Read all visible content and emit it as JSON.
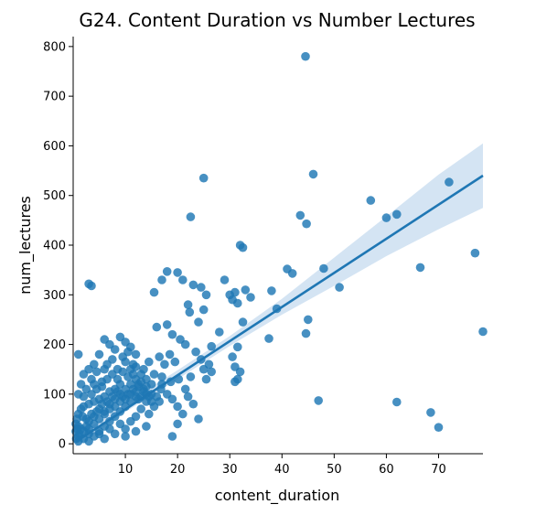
{
  "chart_data": {
    "type": "scatter",
    "title": "G24. Content Duration vs Number Lectures",
    "xlabel": "content_duration",
    "ylabel": "num_lectures",
    "xlim": [
      0,
      78.5
    ],
    "ylim": [
      -20,
      820
    ],
    "xticks": [
      "10",
      "20",
      "30",
      "40",
      "50",
      "60",
      "70"
    ],
    "yticks": [
      "0",
      "100",
      "200",
      "300",
      "400",
      "500",
      "600",
      "700",
      "800"
    ],
    "grid": false,
    "point_color": "#1f77b4",
    "band_color": "#c6dbef",
    "points": [
      [
        44.5,
        780
      ],
      [
        25,
        535
      ],
      [
        46,
        543
      ],
      [
        72,
        527
      ],
      [
        57,
        490
      ],
      [
        62,
        462
      ],
      [
        60,
        455
      ],
      [
        22.5,
        457
      ],
      [
        43.5,
        460
      ],
      [
        44.7,
        443
      ],
      [
        32,
        400
      ],
      [
        32.5,
        395
      ],
      [
        48,
        353
      ],
      [
        41,
        352
      ],
      [
        42,
        343
      ],
      [
        66.5,
        355
      ],
      [
        77,
        384
      ],
      [
        78.5,
        226
      ],
      [
        51,
        315
      ],
      [
        18,
        347
      ],
      [
        20,
        345
      ],
      [
        21,
        330
      ],
      [
        17,
        330
      ],
      [
        23,
        320
      ],
      [
        24.5,
        315
      ],
      [
        25.5,
        300
      ],
      [
        29,
        330
      ],
      [
        31,
        305
      ],
      [
        33,
        310
      ],
      [
        34,
        295
      ],
      [
        30,
        300
      ],
      [
        30.5,
        290
      ],
      [
        31.5,
        283
      ],
      [
        38,
        308
      ],
      [
        39,
        272
      ],
      [
        37.5,
        212
      ],
      [
        45,
        250
      ],
      [
        44.6,
        222
      ],
      [
        32.5,
        245
      ],
      [
        3,
        322
      ],
      [
        3.5,
        318
      ],
      [
        15.5,
        305
      ],
      [
        22,
        280
      ],
      [
        22.3,
        265
      ],
      [
        24,
        245
      ],
      [
        25,
        270
      ],
      [
        28,
        225
      ],
      [
        26.5,
        196
      ],
      [
        31.5,
        195
      ],
      [
        30.5,
        175
      ],
      [
        31,
        155
      ],
      [
        32,
        145
      ],
      [
        31.5,
        130
      ],
      [
        31,
        125
      ],
      [
        47,
        87
      ],
      [
        62,
        84
      ],
      [
        68.5,
        63
      ],
      [
        70,
        33
      ],
      [
        16,
        235
      ],
      [
        18,
        240
      ],
      [
        19,
        220
      ],
      [
        20.5,
        210
      ],
      [
        21.5,
        200
      ],
      [
        23.5,
        185
      ],
      [
        24.5,
        170
      ],
      [
        25,
        150
      ],
      [
        26,
        160
      ],
      [
        26.5,
        145
      ],
      [
        25.5,
        130
      ],
      [
        19.5,
        165
      ],
      [
        18.5,
        180
      ],
      [
        17.5,
        160
      ],
      [
        16.5,
        175
      ],
      [
        15.5,
        140
      ],
      [
        17,
        120
      ],
      [
        18,
        100
      ],
      [
        19,
        90
      ],
      [
        20,
        75
      ],
      [
        21,
        60
      ],
      [
        20,
        40
      ],
      [
        22,
        95
      ],
      [
        23,
        80
      ],
      [
        24,
        50
      ],
      [
        19,
        15
      ],
      [
        21.5,
        110
      ],
      [
        22.5,
        135
      ],
      [
        20.2,
        130
      ],
      [
        18.7,
        125
      ],
      [
        16.8,
        110
      ],
      [
        15,
        100
      ],
      [
        14,
        85
      ],
      [
        13,
        70
      ],
      [
        12,
        55
      ],
      [
        11,
        45
      ],
      [
        10,
        30
      ],
      [
        12.5,
        120
      ],
      [
        13.5,
        150
      ],
      [
        14.5,
        165
      ],
      [
        12,
        180
      ],
      [
        11,
        195
      ],
      [
        10,
        205
      ],
      [
        9,
        215
      ],
      [
        8,
        190
      ],
      [
        7,
        200
      ],
      [
        6,
        210
      ],
      [
        5,
        180
      ],
      [
        4,
        160
      ],
      [
        3,
        150
      ],
      [
        2,
        140
      ],
      [
        1,
        180
      ],
      [
        1.5,
        120
      ],
      [
        2.5,
        110
      ],
      [
        3.5,
        130
      ],
      [
        4.5,
        145
      ],
      [
        5.5,
        125
      ],
      [
        6.5,
        160
      ],
      [
        7.5,
        170
      ],
      [
        8.5,
        150
      ],
      [
        9.5,
        175
      ],
      [
        10.5,
        185
      ],
      [
        11.5,
        160
      ],
      [
        12.5,
        90
      ],
      [
        13.5,
        110
      ],
      [
        14.5,
        60
      ],
      [
        15.5,
        75
      ],
      [
        16.5,
        85
      ],
      [
        9,
        120
      ],
      [
        8,
        110
      ],
      [
        7,
        105
      ],
      [
        6,
        95
      ],
      [
        5,
        90
      ],
      [
        4,
        85
      ],
      [
        3,
        80
      ],
      [
        2,
        75
      ],
      [
        1.5,
        70
      ],
      [
        1,
        60
      ],
      [
        0.7,
        50
      ],
      [
        0.5,
        40
      ],
      [
        0.8,
        30
      ],
      [
        1.2,
        20
      ],
      [
        2,
        10
      ],
      [
        3,
        5
      ],
      [
        4,
        15
      ],
      [
        5,
        25
      ],
      [
        6,
        35
      ],
      [
        7,
        45
      ],
      [
        8,
        55
      ],
      [
        9,
        65
      ],
      [
        10,
        75
      ],
      [
        11,
        85
      ],
      [
        12,
        95
      ],
      [
        6,
        60
      ],
      [
        5,
        70
      ],
      [
        4,
        55
      ],
      [
        3,
        45
      ],
      [
        2.5,
        35
      ],
      [
        7,
        80
      ],
      [
        8,
        90
      ],
      [
        9,
        100
      ],
      [
        10,
        110
      ],
      [
        11,
        120
      ],
      [
        12,
        130
      ],
      [
        13,
        140
      ],
      [
        14,
        130
      ],
      [
        15,
        120
      ],
      [
        3.5,
        100
      ],
      [
        4.5,
        110
      ],
      [
        2,
        95
      ],
      [
        1,
        100
      ],
      [
        1.8,
        55
      ],
      [
        6.5,
        130
      ],
      [
        7.5,
        140
      ],
      [
        8.5,
        130
      ],
      [
        9.5,
        145
      ],
      [
        10.5,
        135
      ],
      [
        11.5,
        140
      ],
      [
        5.5,
        115
      ],
      [
        4,
        120
      ],
      [
        6,
        150
      ],
      [
        10,
        165
      ],
      [
        11,
        150
      ],
      [
        12,
        155
      ],
      [
        13,
        125
      ],
      [
        14,
        115
      ],
      [
        15,
        85
      ],
      [
        16,
        95
      ],
      [
        17,
        135
      ],
      [
        14,
        100
      ],
      [
        13,
        95
      ],
      [
        12,
        105
      ],
      [
        11,
        100
      ],
      [
        10,
        90
      ],
      [
        9,
        85
      ],
      [
        8,
        75
      ],
      [
        7,
        70
      ],
      [
        6,
        65
      ],
      [
        5,
        50
      ],
      [
        4,
        40
      ],
      [
        3,
        30
      ],
      [
        2,
        25
      ],
      [
        1,
        15
      ],
      [
        1.5,
        30
      ],
      [
        2.5,
        50
      ],
      [
        3.5,
        60
      ],
      [
        4.5,
        65
      ],
      [
        5.5,
        80
      ],
      [
        6.5,
        85
      ],
      [
        7.5,
        95
      ],
      [
        8.5,
        105
      ],
      [
        9.5,
        95
      ],
      [
        10.5,
        100
      ],
      [
        11.5,
        110
      ],
      [
        12.5,
        115
      ],
      [
        13.5,
        105
      ],
      [
        14.5,
        95
      ],
      [
        6,
        10
      ],
      [
        8,
        20
      ],
      [
        10,
        15
      ],
      [
        12,
        25
      ],
      [
        14,
        35
      ],
      [
        9,
        40
      ],
      [
        7,
        30
      ],
      [
        5,
        20
      ],
      [
        3,
        20
      ],
      [
        1,
        35
      ],
      [
        0.5,
        25
      ],
      [
        0.6,
        10
      ],
      [
        1,
        5
      ]
    ],
    "fit": {
      "x0": 0.5,
      "y0": 4,
      "x1": 78.5,
      "y1": 540
    },
    "ci": {
      "upper": [
        [
          0.5,
          14
        ],
        [
          10,
          82
        ],
        [
          20,
          148
        ],
        [
          30,
          217
        ],
        [
          40,
          292
        ],
        [
          50,
          375
        ],
        [
          60,
          458
        ],
        [
          70,
          542
        ],
        [
          78.5,
          605
        ]
      ],
      "lower": [
        [
          0.5,
          -6
        ],
        [
          10,
          64
        ],
        [
          20,
          130
        ],
        [
          30,
          197
        ],
        [
          40,
          260
        ],
        [
          50,
          318
        ],
        [
          60,
          378
        ],
        [
          70,
          432
        ],
        [
          78.5,
          475
        ]
      ]
    }
  }
}
